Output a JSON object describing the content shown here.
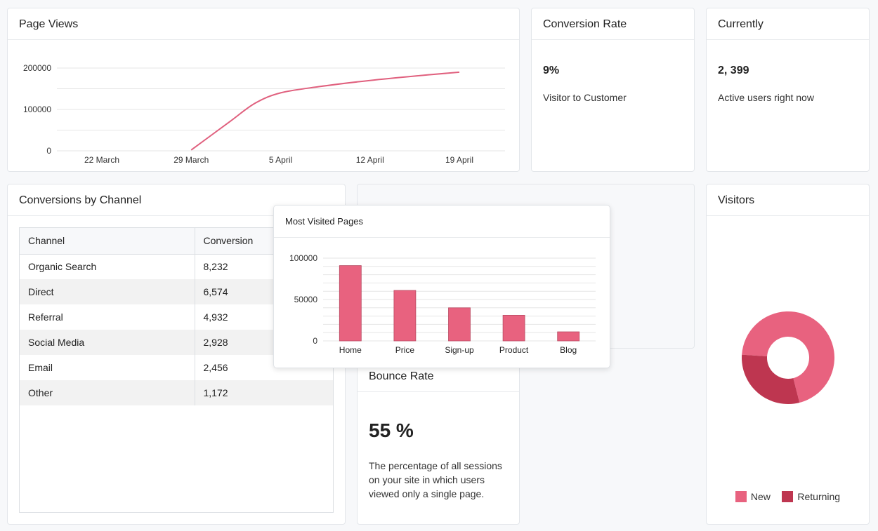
{
  "page_views": {
    "title": "Page Views",
    "chart_data": {
      "type": "line",
      "title": "",
      "xlabel": "",
      "ylabel": "",
      "x_ticks": [
        "22 March",
        "29 March",
        "5 April",
        "12 April",
        "19 April"
      ],
      "y_ticks": [
        "200000",
        "100000",
        "0"
      ],
      "ylim": [
        0,
        200000
      ],
      "series": [
        {
          "x": [
            "29 March",
            "1 April",
            "3 April",
            "5 April",
            "8 April",
            "12 April",
            "16 April",
            "19 April"
          ],
          "values": [
            2000,
            70000,
            115000,
            140000,
            155000,
            170000,
            182000,
            190000
          ]
        }
      ],
      "color": "#e0607e"
    }
  },
  "conversion_rate": {
    "title": "Conversion Rate",
    "value": "9%",
    "subtitle": "Visitor to Customer"
  },
  "currently": {
    "title": "Currently",
    "value": "2, 399",
    "subtitle": "Active users right now"
  },
  "conversions_by_channel": {
    "title": "Conversions by Channel",
    "columns": [
      "Channel",
      "Conversion"
    ],
    "rows": [
      [
        "Organic Search",
        "8,232"
      ],
      [
        "Direct",
        "6,574"
      ],
      [
        "Referral",
        "4,932"
      ],
      [
        "Social Media",
        "2,928"
      ],
      [
        "Email",
        "2,456"
      ],
      [
        "Other",
        "1,172"
      ]
    ]
  },
  "most_visited_pages": {
    "title": "Most Visited Pages",
    "chart_data": {
      "type": "bar",
      "title": "",
      "categories": [
        "Home",
        "Price",
        "Sign-up",
        "Product",
        "Blog"
      ],
      "values": [
        91000,
        61000,
        40000,
        31000,
        11000
      ],
      "y_ticks": [
        "100000",
        "50000",
        "0"
      ],
      "ylim": [
        0,
        100000
      ],
      "color": "#e8627f"
    }
  },
  "bounce_rate": {
    "title": "Bounce Rate",
    "value": "55 %",
    "description": "The percentage of all sessions on your site in which users viewed only a single page."
  },
  "visitors": {
    "title": "Visitors",
    "chart_data": {
      "type": "pie",
      "donut": true,
      "labels": [
        "New",
        "Returning"
      ],
      "values": [
        70,
        30
      ],
      "colors": [
        "#e8627f",
        "#be3650"
      ]
    },
    "legend": [
      "New",
      "Returning"
    ]
  }
}
